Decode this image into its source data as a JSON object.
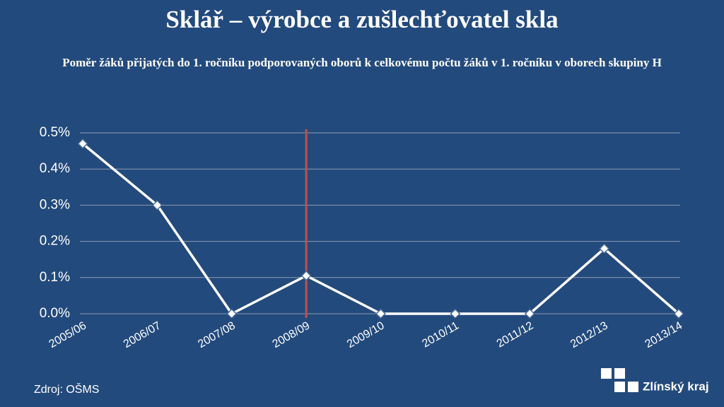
{
  "title": "Sklář – výrobce a zušlechťovatel skla",
  "subtitle": "Poměr žáků přijatých do 1. ročníku podporovaných oborů k celkovému počtu žáků v 1. ročníku v oborech skupiny H",
  "source": "Zdroj: OŠMS",
  "logo": "Zlínský kraj",
  "chart_data": {
    "type": "line",
    "categories": [
      "2005/06",
      "2006/07",
      "2007/08",
      "2008/09",
      "2009/10",
      "2010/11",
      "2011/12",
      "2012/13",
      "2013/14"
    ],
    "values": [
      0.47,
      0.3,
      0,
      0.105,
      0,
      0,
      0,
      0.18,
      0
    ],
    "color": "#ffffff",
    "ylim": [
      0,
      0.5
    ],
    "yticks": [
      {
        "value": 0,
        "label": "0.0%"
      },
      {
        "value": 0.1,
        "label": "0.1%"
      },
      {
        "value": 0.2,
        "label": "0.2%"
      },
      {
        "value": 0.3,
        "label": "0.3%"
      },
      {
        "value": 0.4,
        "label": "0.4%"
      },
      {
        "value": 0.5,
        "label": "0.5%"
      }
    ],
    "grid": true,
    "vline": {
      "category_index": 3,
      "color": "#c0504d"
    }
  }
}
